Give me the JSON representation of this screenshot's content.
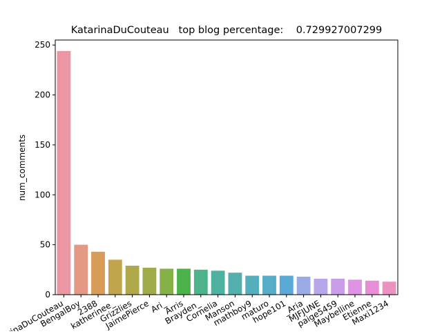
{
  "chart_data": {
    "type": "bar",
    "title": "KatarinaDuCouteau   top blog percentage:    0.729927007299",
    "xlabel": "",
    "ylabel": "num_comments",
    "ylim": [
      0,
      255
    ],
    "yticks": [
      0,
      50,
      100,
      150,
      200,
      250
    ],
    "grid": false,
    "categories": [
      "KatarinaDuCouteau",
      "BengalBoy",
      "2388",
      "katherinee_",
      "Grizzlies",
      "JaimePierce",
      "Ari_",
      "Arris",
      "Brayden_",
      "Cornelia",
      "Manson",
      "mathboy9",
      "maturo",
      "hope101",
      "_Aria",
      "MJFJUNE",
      "paige5459",
      "Maybelline",
      "Etienne",
      "Maxi1234"
    ],
    "values": [
      244,
      50,
      43,
      35,
      29,
      27,
      26,
      26,
      25,
      24,
      22,
      19,
      19,
      19,
      18,
      16,
      16,
      15,
      14,
      13
    ],
    "colors": [
      "#ea96a3",
      "#e49987",
      "#d79d58",
      "#c0a54c",
      "#aea84b",
      "#9fab49",
      "#86b149",
      "#4bb349",
      "#4db38c",
      "#4fb29f",
      "#52b0ae",
      "#55aebc",
      "#57adc7",
      "#5aa9d5",
      "#9aabe8",
      "#b5a7ea",
      "#c99de8",
      "#dd94e4",
      "#e88ed5",
      "#ec92c0"
    ]
  }
}
